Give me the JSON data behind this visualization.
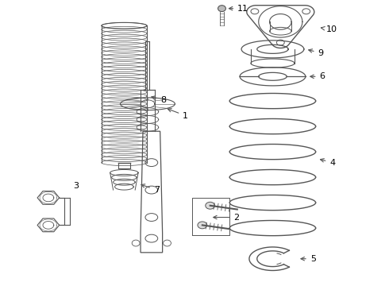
{
  "bg_color": "#ffffff",
  "line_color": "#555555",
  "fig_width": 4.9,
  "fig_height": 3.6,
  "dpi": 100
}
